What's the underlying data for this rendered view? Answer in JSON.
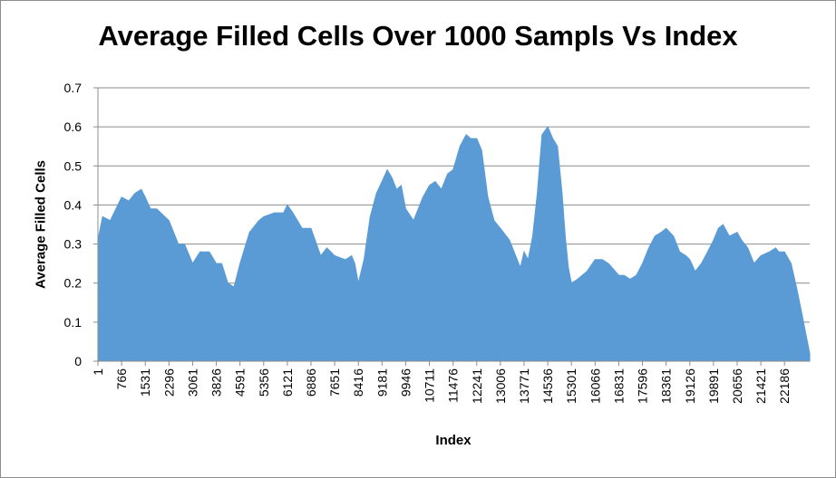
{
  "chart_data": {
    "type": "area",
    "title": "Average Filled Cells Over 1000 Sampls Vs Index",
    "xlabel": "Index",
    "ylabel": "Average Filled Cells",
    "ylim": [
      0,
      0.7
    ],
    "y_ticks": [
      "0",
      "0.1",
      "0.2",
      "0.3",
      "0.4",
      "0.5",
      "0.6",
      "0.7"
    ],
    "x_tick_labels": [
      "1",
      "766",
      "1531",
      "2296",
      "3061",
      "3826",
      "4591",
      "5356",
      "6121",
      "6886",
      "7651",
      "8416",
      "9181",
      "9946",
      "10711",
      "11476",
      "12241",
      "13006",
      "13771",
      "14536",
      "15301",
      "16066",
      "16831",
      "17596",
      "18361",
      "19126",
      "19891",
      "20656",
      "21421",
      "22186"
    ],
    "xlim": [
      1,
      23000
    ],
    "grid": "horizontal",
    "legend": "none",
    "fill_color": "#5B9BD5",
    "series": [
      {
        "x": [
          1,
          150,
          400,
          766,
          1000,
          1200,
          1400,
          1531,
          1700,
          1900,
          2296,
          2600,
          2800,
          3061,
          3300,
          3600,
          3826,
          4000,
          4200,
          4400,
          4591,
          4900,
          5200,
          5356,
          5700,
          6000,
          6121,
          6300,
          6600,
          6886,
          7200,
          7400,
          7651,
          8000,
          8200,
          8300,
          8416,
          8600,
          8800,
          9000,
          9181,
          9350,
          9500,
          9650,
          9800,
          9946,
          10200,
          10500,
          10711,
          10900,
          11100,
          11300,
          11476,
          11700,
          11900,
          12050,
          12241,
          12400,
          12600,
          12800,
          13006,
          13300,
          13500,
          13650,
          13771,
          13900,
          14050,
          14200,
          14350,
          14536,
          14700,
          14850,
          15000,
          15100,
          15200,
          15301,
          15500,
          15800,
          16066,
          16300,
          16500,
          16831,
          17000,
          17200,
          17400,
          17596,
          17800,
          18000,
          18200,
          18361,
          18600,
          18800,
          19000,
          19126,
          19300,
          19500,
          19700,
          19891,
          20050,
          20200,
          20400,
          20656,
          20800,
          21000,
          21200,
          21421,
          21700,
          21900,
          22000,
          22186,
          22400,
          22600,
          22750,
          22900,
          23000
        ],
        "values": [
          0.31,
          0.37,
          0.36,
          0.42,
          0.41,
          0.43,
          0.44,
          0.42,
          0.39,
          0.39,
          0.36,
          0.3,
          0.3,
          0.25,
          0.28,
          0.28,
          0.25,
          0.25,
          0.2,
          0.19,
          0.25,
          0.33,
          0.36,
          0.37,
          0.38,
          0.38,
          0.4,
          0.38,
          0.34,
          0.34,
          0.27,
          0.29,
          0.27,
          0.26,
          0.27,
          0.25,
          0.2,
          0.26,
          0.37,
          0.43,
          0.46,
          0.49,
          0.47,
          0.44,
          0.45,
          0.39,
          0.36,
          0.42,
          0.45,
          0.46,
          0.44,
          0.48,
          0.49,
          0.55,
          0.58,
          0.57,
          0.57,
          0.54,
          0.42,
          0.36,
          0.34,
          0.31,
          0.27,
          0.24,
          0.28,
          0.26,
          0.32,
          0.43,
          0.58,
          0.6,
          0.57,
          0.55,
          0.43,
          0.32,
          0.24,
          0.2,
          0.21,
          0.23,
          0.26,
          0.26,
          0.25,
          0.22,
          0.22,
          0.21,
          0.22,
          0.25,
          0.29,
          0.32,
          0.33,
          0.34,
          0.32,
          0.28,
          0.27,
          0.26,
          0.23,
          0.25,
          0.28,
          0.31,
          0.34,
          0.35,
          0.32,
          0.33,
          0.31,
          0.29,
          0.25,
          0.27,
          0.28,
          0.29,
          0.28,
          0.28,
          0.25,
          0.18,
          0.12,
          0.06,
          0.02
        ]
      }
    ]
  }
}
